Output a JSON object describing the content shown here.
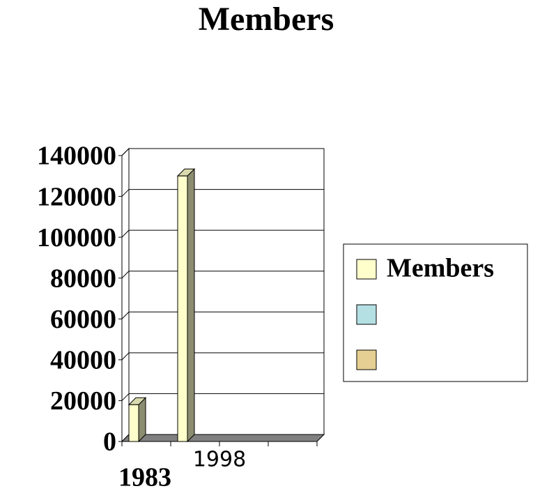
{
  "chart_data": {
    "type": "bar3d",
    "title": "Members",
    "categories": [
      "1983",
      "1998",
      null,
      null
    ],
    "series": [
      {
        "name": "Members",
        "color": "#ffffcc",
        "values": [
          18000,
          130000,
          null,
          null
        ]
      },
      {
        "name": null,
        "color": "#b4e0e4",
        "values": [
          null,
          null,
          null,
          null
        ]
      },
      {
        "name": null,
        "color": "#e6cf92",
        "values": [
          null,
          null,
          null,
          null
        ]
      }
    ],
    "ylim": [
      0,
      140000
    ],
    "yticks": [
      0,
      20000,
      40000,
      60000,
      80000,
      100000,
      120000,
      140000
    ],
    "grid": true,
    "legend": "right"
  }
}
